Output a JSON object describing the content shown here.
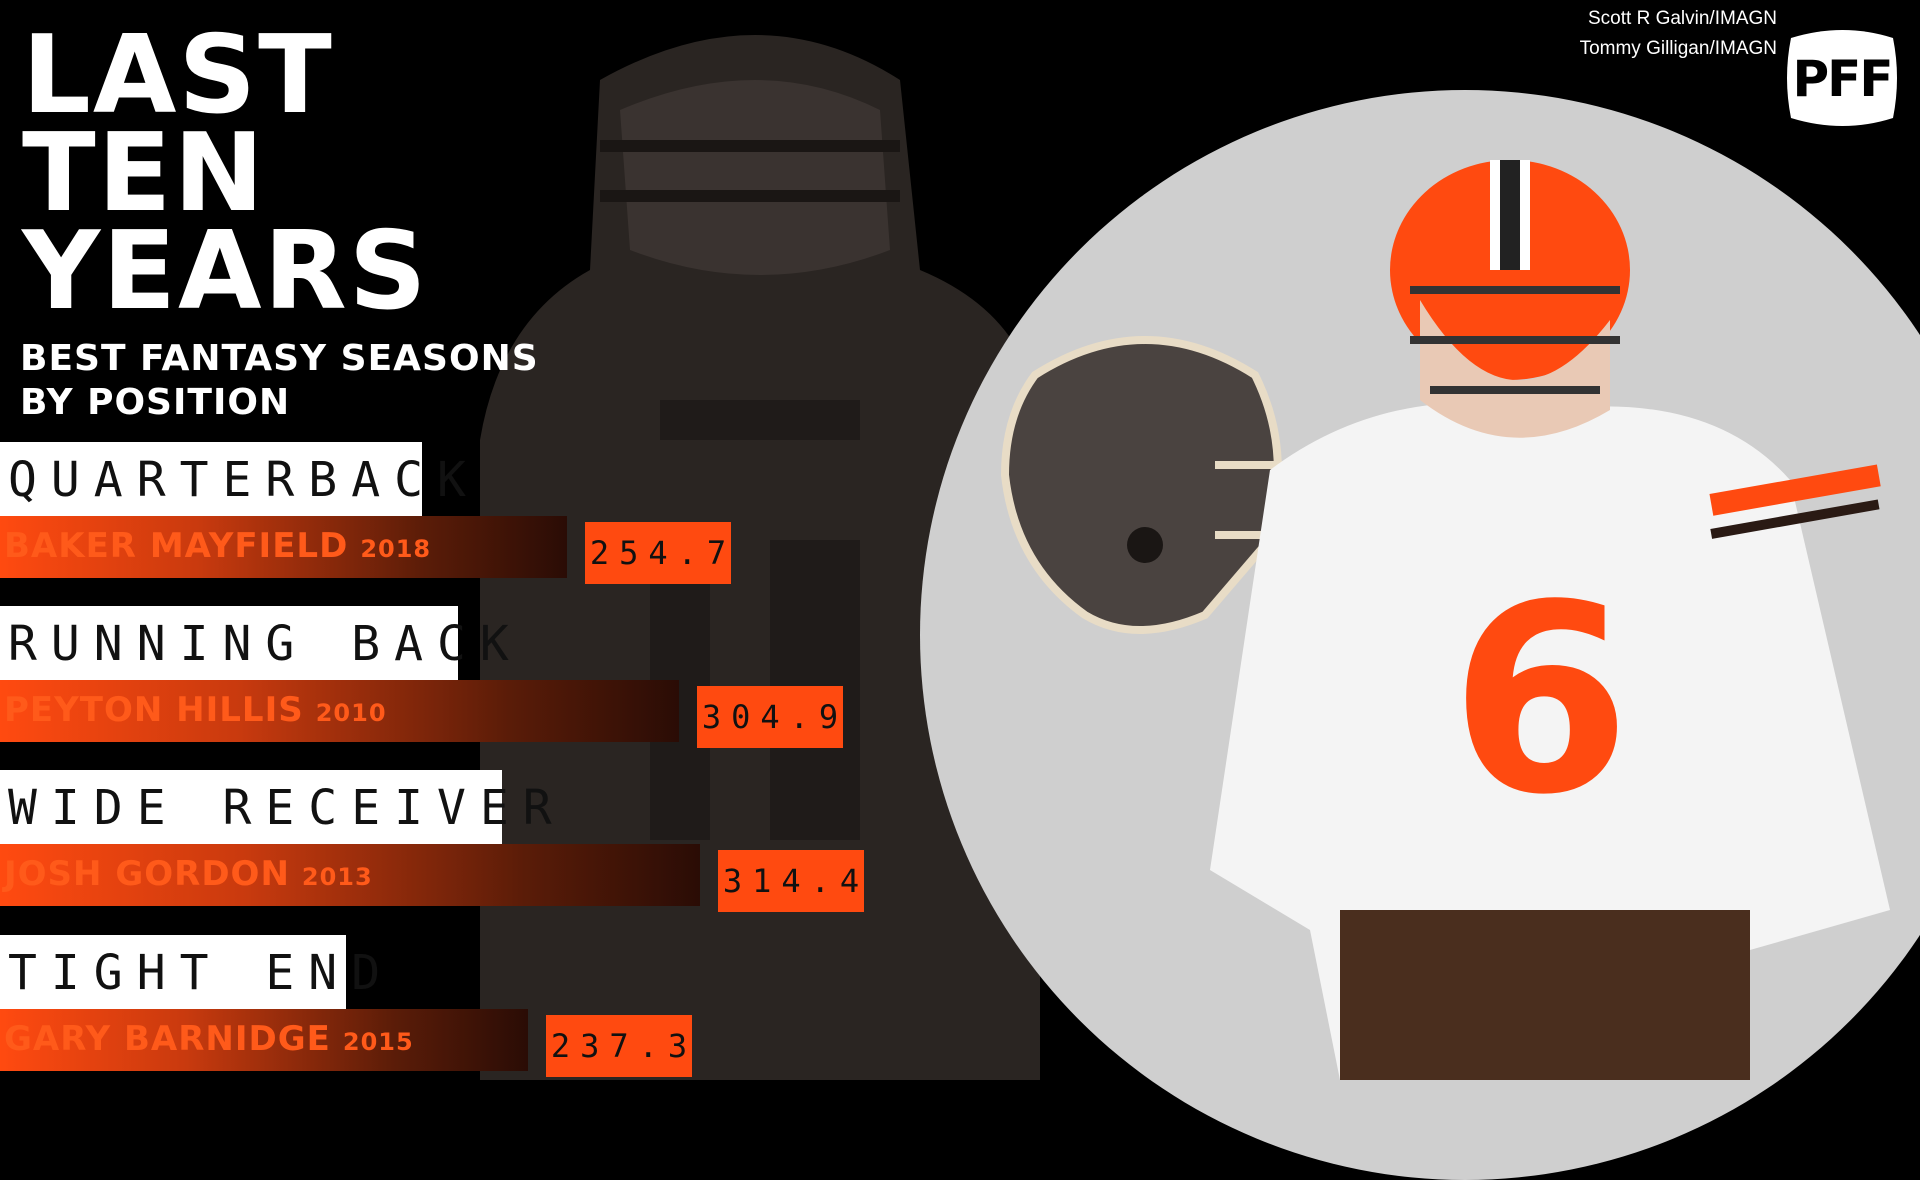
{
  "title": {
    "line1": "LAST",
    "line2": "TEN",
    "line3": "YEARS",
    "subtitle1": "BEST FANTASY SEASONS",
    "subtitle2": "BY POSITION"
  },
  "credits": {
    "line1": "Scott R Galvin/IMAGN",
    "line2": "Tommy Gilligan/IMAGN"
  },
  "logo": {
    "text": "PFF"
  },
  "colors": {
    "accent": "#ff4a10",
    "circle": "#cfcfcf",
    "background": "#000000"
  },
  "chart_data": {
    "type": "bar",
    "title": "LAST TEN YEARS",
    "subtitle": "BEST FANTASY SEASONS BY POSITION",
    "categories": [
      "QUARTERBACK",
      "RUNNING BACK",
      "WIDE RECEIVER",
      "TIGHT END"
    ],
    "players": [
      "BAKER MAYFIELD",
      "PEYTON HILLIS",
      "JOSH GORDON",
      "GARY BARNIDGE"
    ],
    "years": [
      "2018",
      "2010",
      "2013",
      "2015"
    ],
    "values": [
      254.7,
      304.9,
      314.4,
      237.3
    ],
    "value_labels": [
      "254.7",
      "304.9",
      "314.4",
      "237.3"
    ],
    "xlim": [
      0,
      314.4
    ]
  }
}
